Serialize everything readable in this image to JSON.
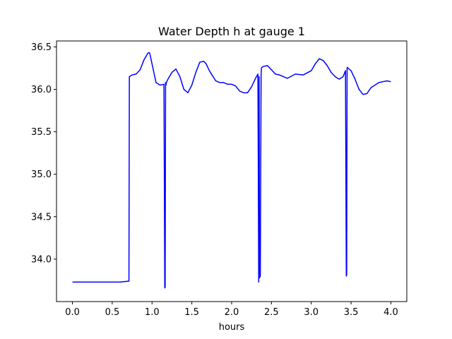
{
  "chart_data": {
    "type": "line",
    "title": "Water Depth h at gauge 1",
    "xlabel": "hours",
    "ylabel": "",
    "xlim": [
      -0.2,
      4.2
    ],
    "ylim": [
      33.5,
      36.57
    ],
    "x_ticks": [
      0.0,
      0.5,
      1.0,
      1.5,
      2.0,
      2.5,
      3.0,
      3.5,
      4.0
    ],
    "x_tick_labels": [
      "0.0",
      "0.5",
      "1.0",
      "1.5",
      "2.0",
      "2.5",
      "3.0",
      "3.5",
      "4.0"
    ],
    "y_ticks": [
      34.0,
      34.5,
      35.0,
      35.5,
      36.0,
      36.5
    ],
    "y_tick_labels": [
      "34.0",
      "34.5",
      "35.0",
      "35.5",
      "36.0",
      "36.5"
    ],
    "grid": false,
    "legend": "none",
    "series": [
      {
        "color": "#0000ff",
        "x": [
          0.0,
          0.2,
          0.4,
          0.6,
          0.7,
          0.71,
          0.715,
          0.75,
          0.8,
          0.85,
          0.9,
          0.95,
          0.97,
          1.0,
          1.05,
          1.1,
          1.15,
          1.16,
          1.165,
          1.17,
          1.175,
          1.18,
          1.2,
          1.25,
          1.3,
          1.35,
          1.4,
          1.45,
          1.5,
          1.55,
          1.6,
          1.65,
          1.68,
          1.72,
          1.8,
          1.85,
          1.9,
          1.95,
          2.0,
          2.05,
          2.1,
          2.15,
          2.2,
          2.25,
          2.3,
          2.33,
          2.34,
          2.345,
          2.35,
          2.36,
          2.37,
          2.375,
          2.38,
          2.4,
          2.45,
          2.5,
          2.55,
          2.6,
          2.7,
          2.8,
          2.9,
          3.0,
          3.05,
          3.1,
          3.15,
          3.2,
          3.25,
          3.3,
          3.35,
          3.4,
          3.43,
          3.44,
          3.445,
          3.45,
          3.455,
          3.46,
          3.5,
          3.55,
          3.6,
          3.65,
          3.7,
          3.75,
          3.8,
          3.85,
          3.9,
          3.95,
          4.0
        ],
        "y": [
          33.73,
          33.73,
          33.73,
          33.73,
          33.74,
          33.74,
          36.15,
          36.17,
          36.18,
          36.23,
          36.35,
          36.43,
          36.43,
          36.3,
          36.08,
          36.05,
          36.06,
          33.66,
          33.67,
          36.08,
          36.05,
          36.08,
          36.12,
          36.2,
          36.24,
          36.15,
          36.0,
          35.96,
          36.05,
          36.2,
          36.32,
          36.33,
          36.3,
          36.22,
          36.1,
          36.08,
          36.08,
          36.06,
          36.06,
          36.04,
          35.98,
          35.96,
          35.96,
          36.03,
          36.13,
          36.18,
          33.73,
          36.15,
          33.78,
          33.8,
          36.18,
          36.25,
          36.26,
          36.27,
          36.28,
          36.23,
          36.18,
          36.17,
          36.13,
          36.18,
          36.17,
          36.22,
          36.3,
          36.36,
          36.34,
          36.28,
          36.2,
          36.15,
          36.12,
          36.15,
          36.22,
          33.8,
          33.82,
          36.25,
          36.26,
          36.25,
          36.22,
          36.12,
          36.0,
          35.94,
          35.95,
          36.02,
          36.05,
          36.08,
          36.09,
          36.1,
          36.09
        ]
      }
    ]
  }
}
